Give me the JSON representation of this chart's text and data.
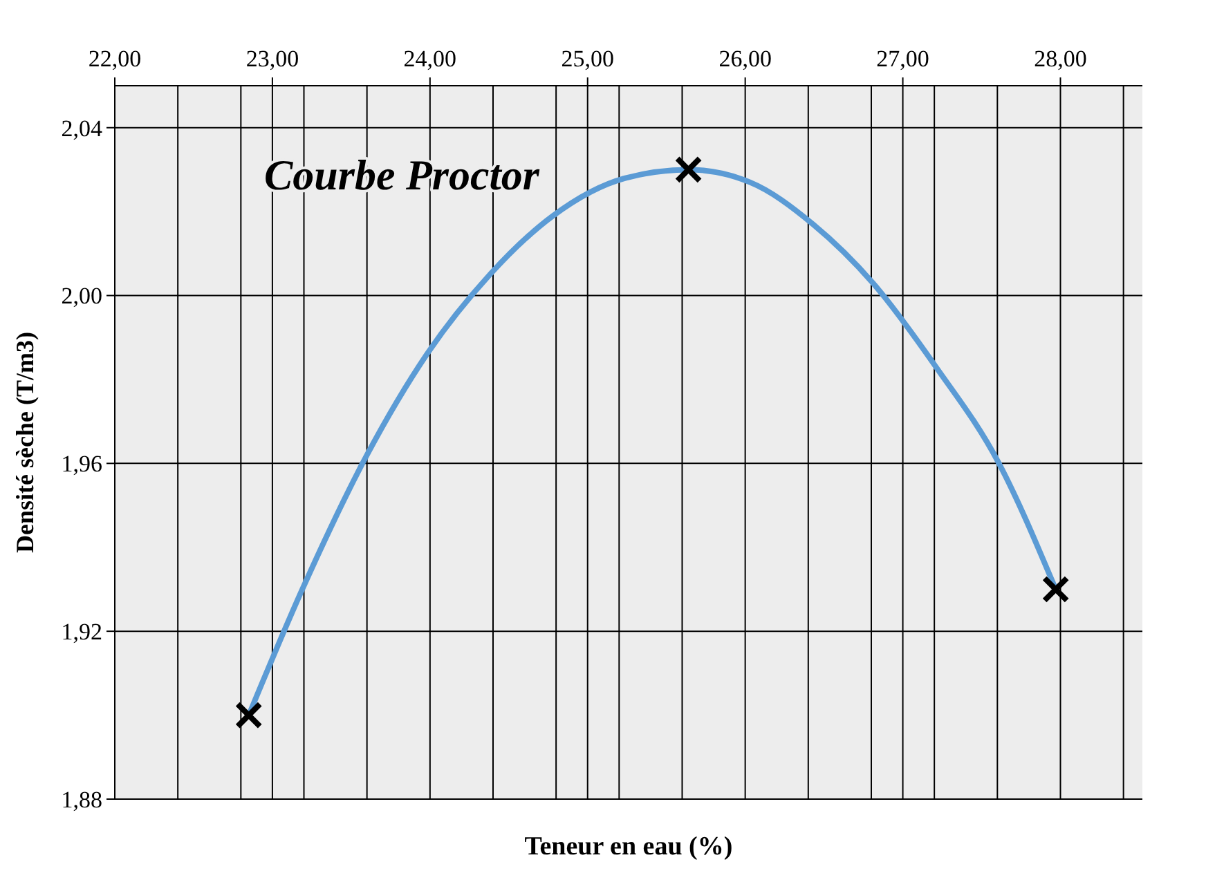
{
  "chart_data": {
    "type": "scatter",
    "title": "Courbe Proctor",
    "xlabel": "Teneur en eau (%)",
    "ylabel": "Densité sèche (T/m3)",
    "xlim": [
      22,
      28.52
    ],
    "ylim": [
      1.88,
      2.05
    ],
    "xticks": [
      {
        "value": 22,
        "label": "22,00"
      },
      {
        "value": 22.4,
        "label": null
      },
      {
        "value": 22.8,
        "label": null
      },
      {
        "value": 23,
        "label": "23,00"
      },
      {
        "value": 23.2,
        "label": null
      },
      {
        "value": 23.6,
        "label": null
      },
      {
        "value": 24,
        "label": "24,00"
      },
      {
        "value": 24.4,
        "label": null
      },
      {
        "value": 24.8,
        "label": null
      },
      {
        "value": 25,
        "label": "25,00"
      },
      {
        "value": 25.2,
        "label": null
      },
      {
        "value": 25.6,
        "label": null
      },
      {
        "value": 26,
        "label": "26,00"
      },
      {
        "value": 26.4,
        "label": null
      },
      {
        "value": 26.8,
        "label": null
      },
      {
        "value": 27,
        "label": "27,00"
      },
      {
        "value": 27.2,
        "label": null
      },
      {
        "value": 27.6,
        "label": null
      },
      {
        "value": 28,
        "label": "28,00"
      },
      {
        "value": 28.4,
        "label": null
      }
    ],
    "yticks": [
      {
        "value": 1.88,
        "label": "1,88"
      },
      {
        "value": 1.92,
        "label": "1,92"
      },
      {
        "value": 1.96,
        "label": "1,96"
      },
      {
        "value": 2,
        "label": "2,00"
      },
      {
        "value": 2.04,
        "label": "2,04"
      }
    ],
    "grid": true,
    "series": [
      {
        "type": "line",
        "color": "#5b9bd5",
        "marker": "none",
        "x": [
          22.85,
          23.19,
          23.6,
          23.98,
          24.38,
          24.78,
          25.24,
          25.64,
          26.03,
          26.43,
          26.81,
          27.21,
          27.61,
          27.97
        ],
        "values": [
          1.9,
          1.93,
          1.962,
          1.986,
          2.005,
          2.019,
          2.028,
          2.03,
          2.027,
          2.017,
          2.003,
          1.983,
          1.96,
          1.93
        ]
      },
      {
        "color": "#000000",
        "marker": "cross",
        "x": [
          22.85,
          25.64,
          27.97
        ],
        "values": [
          1.9,
          2.03,
          1.93
        ]
      }
    ]
  }
}
